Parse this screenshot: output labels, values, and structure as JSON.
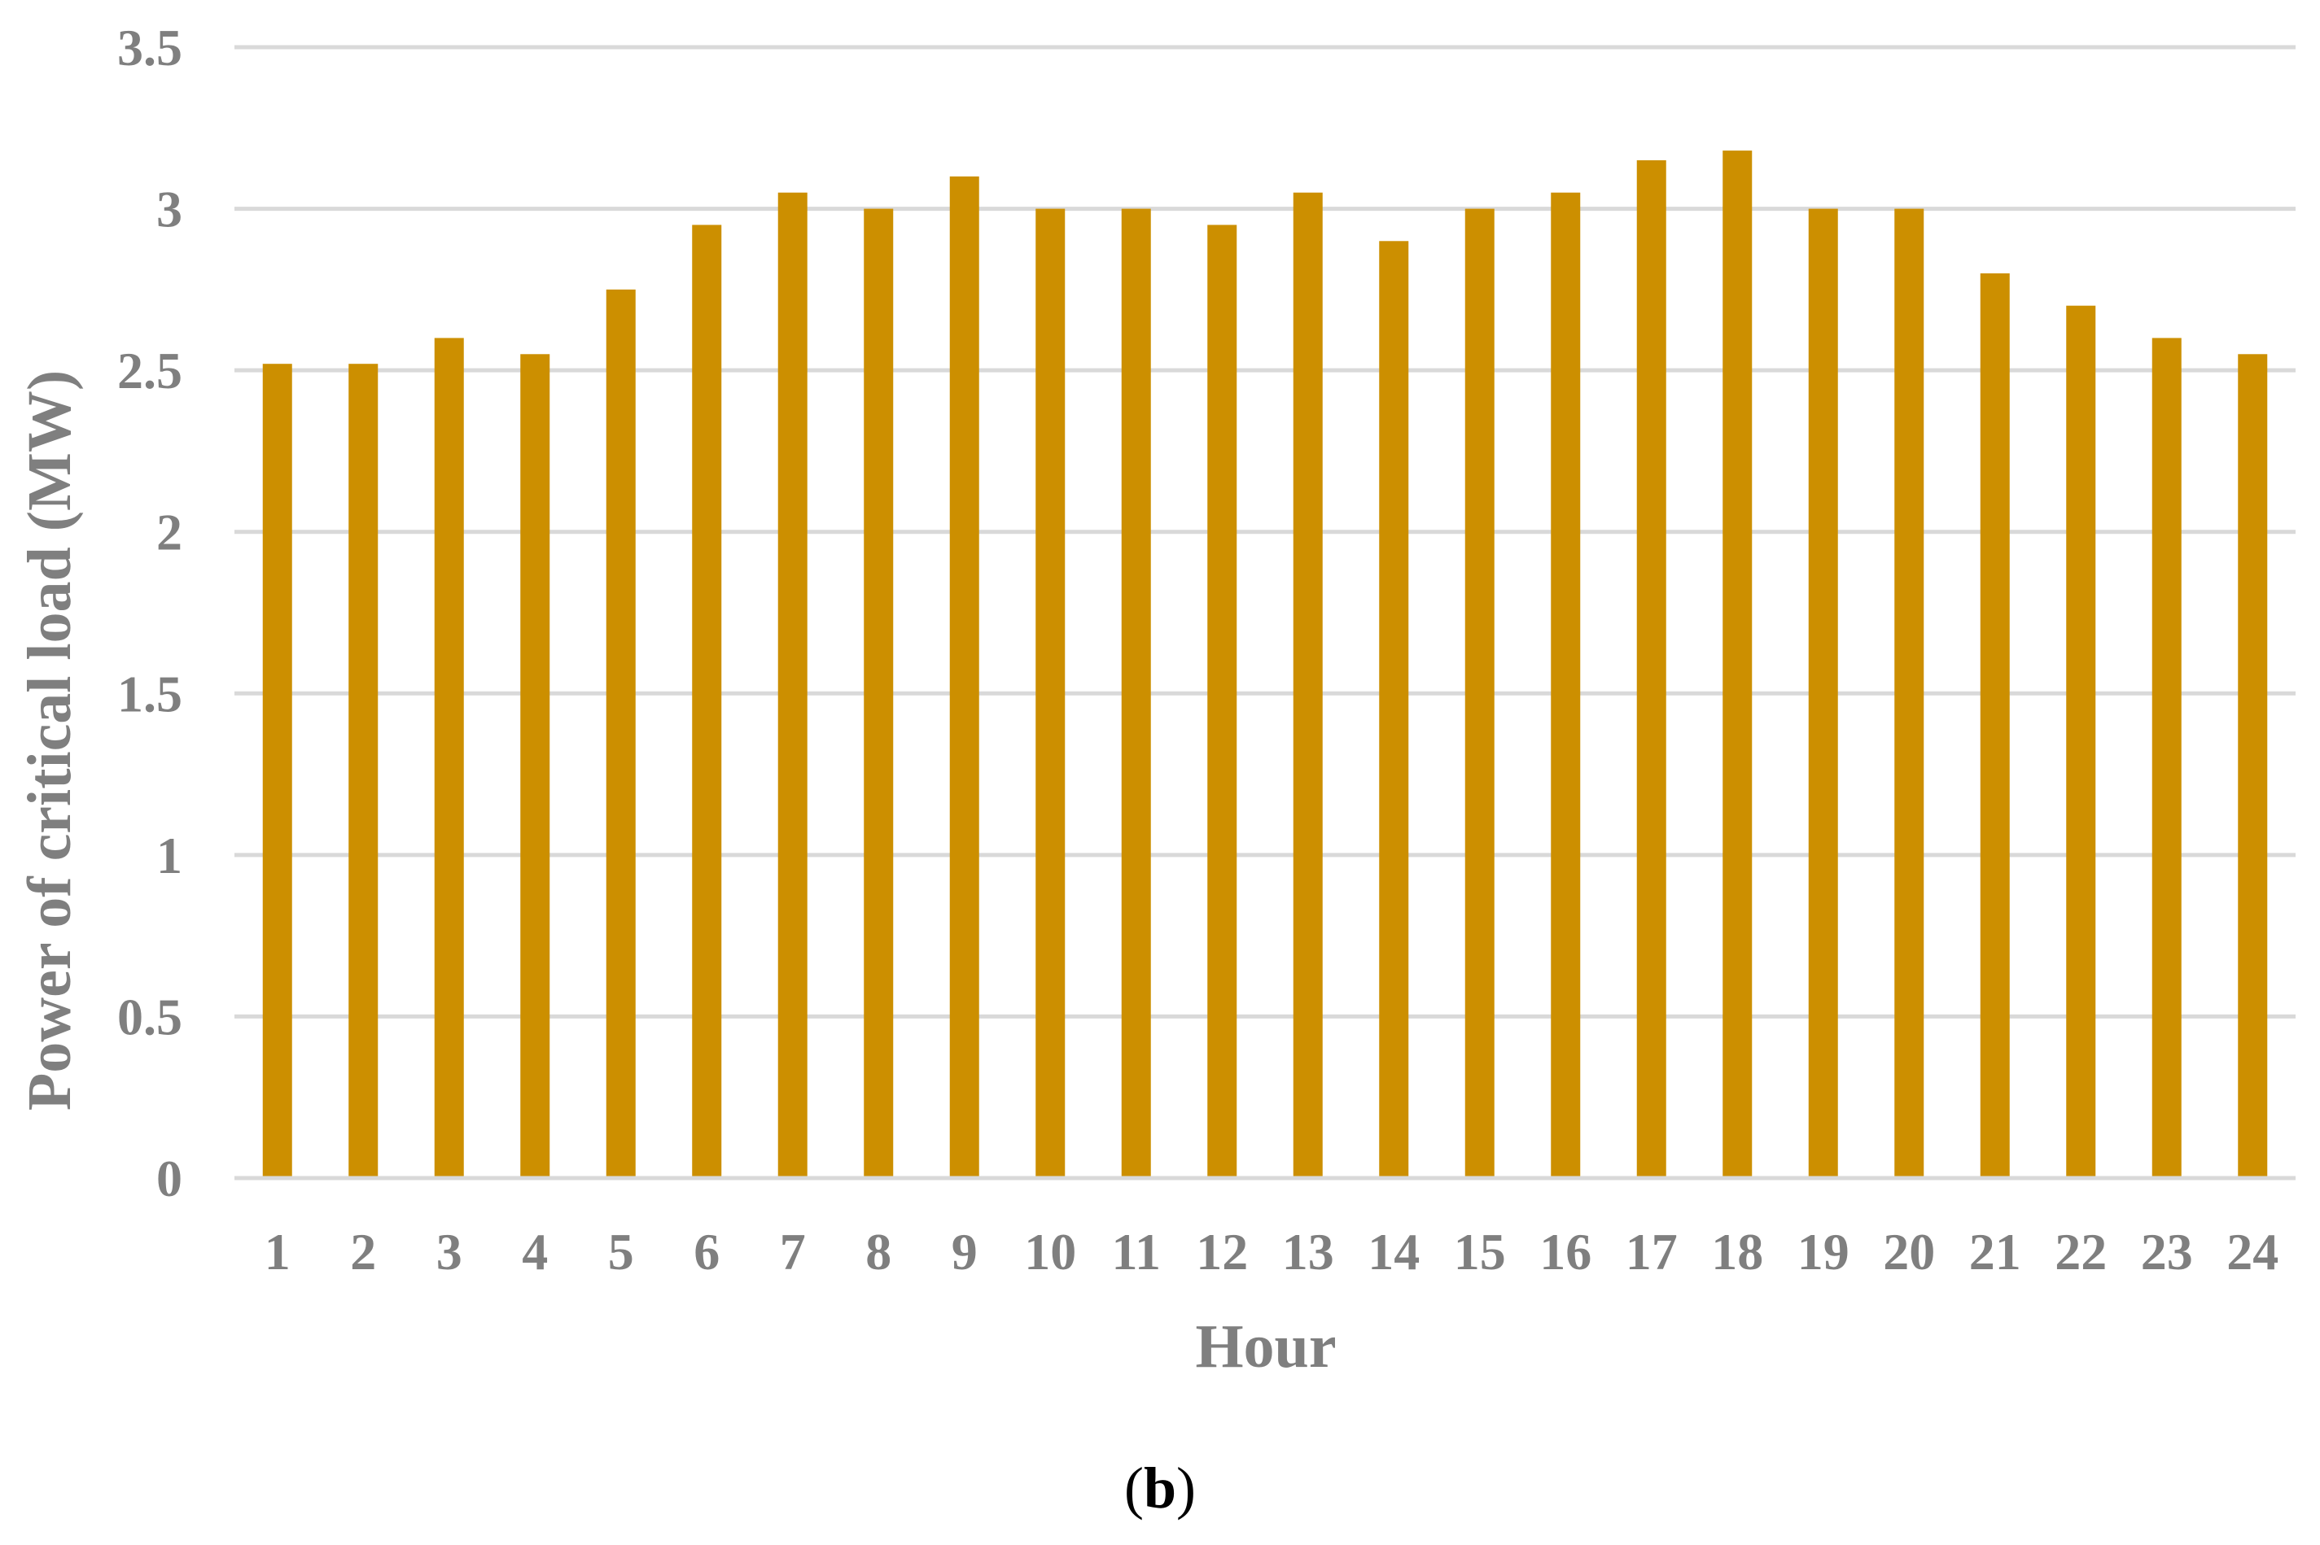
{
  "chart_data": {
    "type": "bar",
    "categories": [
      "1",
      "2",
      "3",
      "4",
      "5",
      "6",
      "7",
      "8",
      "9",
      "10",
      "11",
      "12",
      "13",
      "14",
      "15",
      "16",
      "17",
      "18",
      "19",
      "20",
      "21",
      "22",
      "23",
      "24"
    ],
    "values": [
      2.52,
      2.52,
      2.6,
      2.55,
      2.75,
      2.95,
      3.05,
      3.0,
      3.1,
      3.0,
      3.0,
      2.95,
      3.05,
      2.9,
      3.0,
      3.05,
      3.15,
      3.18,
      3.0,
      3.0,
      2.8,
      2.7,
      2.6,
      2.55
    ],
    "xlabel": "Hour",
    "ylabel": "Power of critical load (MW)",
    "ylim": [
      0,
      3.5
    ],
    "yticks": [
      "0",
      "0.5",
      "1",
      "1.5",
      "2",
      "2.5",
      "3",
      "3.5"
    ],
    "grid": true,
    "legend": "none",
    "bar_color": "#cc8f00",
    "grid_color": "#d9d9d9",
    "text_color": "#7f7f7f"
  },
  "caption": {
    "open": "(",
    "letter": "b",
    "close": ")"
  }
}
